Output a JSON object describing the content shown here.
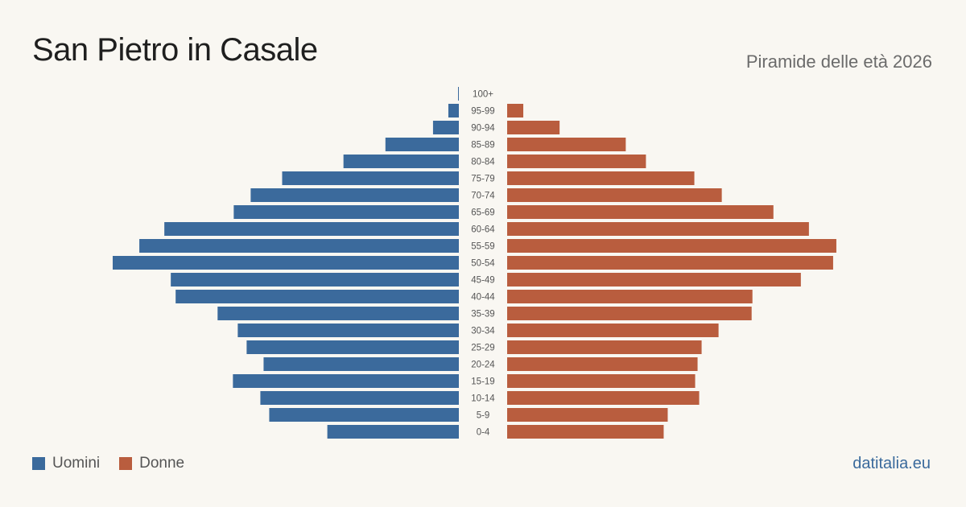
{
  "header": {
    "title": "San Pietro  in Casale",
    "subtitle": "Piramide delle età 2026"
  },
  "legend": {
    "men_label": "Uomini",
    "women_label": "Donne"
  },
  "footer": {
    "source": "datitalia.eu"
  },
  "colors": {
    "men": "#3b6a9c",
    "women": "#b95d3e"
  },
  "chart_data": {
    "type": "bar",
    "orientation": "horizontal-pyramid",
    "categories": [
      "100+",
      "95-99",
      "90-94",
      "85-89",
      "80-84",
      "75-79",
      "70-74",
      "65-69",
      "60-64",
      "55-59",
      "50-54",
      "45-49",
      "40-44",
      "35-39",
      "30-34",
      "25-29",
      "20-24",
      "15-19",
      "10-14",
      "5-9",
      "0-4"
    ],
    "series": [
      {
        "name": "Uomini",
        "values": [
          1,
          13,
          32,
          91,
          143,
          219,
          258,
          279,
          365,
          396,
          429,
          357,
          351,
          299,
          274,
          263,
          242,
          280,
          246,
          235,
          163
        ]
      },
      {
        "name": "Donne",
        "values": [
          0,
          20,
          65,
          147,
          172,
          232,
          266,
          330,
          374,
          408,
          404,
          364,
          304,
          303,
          262,
          241,
          236,
          233,
          238,
          199,
          194
        ]
      }
    ],
    "legend_position": "bottom-left",
    "grid": false
  }
}
